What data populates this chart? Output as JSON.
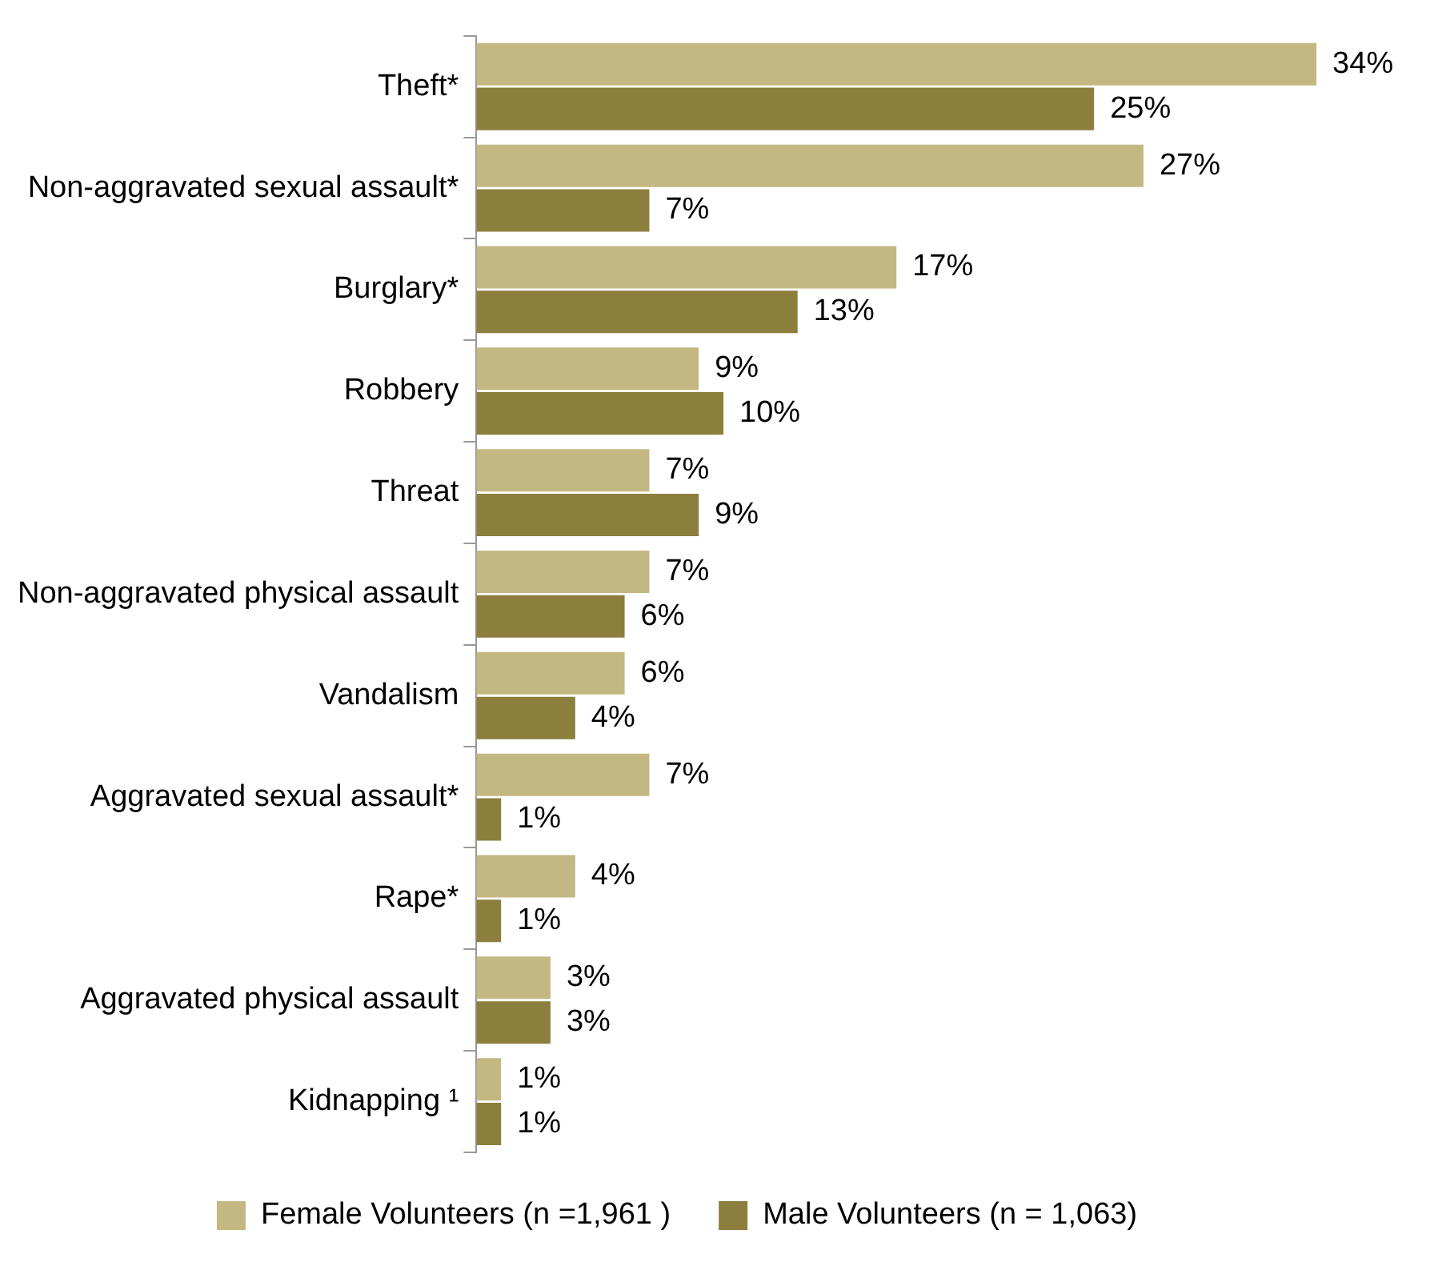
{
  "chart_data": {
    "type": "bar",
    "orientation": "horizontal",
    "legend": "bottom",
    "tick_labels": "y",
    "categories": [
      "Theft*",
      "Non-aggravated sexual assault*",
      "Burglary*",
      "Robbery",
      "Threat",
      "Non-aggravated physical assault",
      "Vandalism",
      "Aggravated sexual assault*",
      "Rape*",
      "Aggravated physical assault",
      "Kidnapping ¹"
    ],
    "series": [
      {
        "name": "Female Volunteers (n =1,961 )",
        "color": "#c4b882",
        "values": [
          34,
          27,
          17,
          9,
          7,
          7,
          6,
          7,
          4,
          3,
          1
        ],
        "value_labels": [
          "34%",
          "27%",
          "17%",
          "9%",
          "7%",
          "7%",
          "6%",
          "7%",
          "4%",
          "3%",
          "1%"
        ]
      },
      {
        "name": "Male Volunteers (n = 1,063)",
        "color": "#8c7e3c",
        "values": [
          25,
          7,
          13,
          10,
          9,
          6,
          4,
          1,
          1,
          3,
          1
        ],
        "value_labels": [
          "25%",
          "7%",
          "13%",
          "10%",
          "9%",
          "6%",
          "4%",
          "1%",
          "1%",
          "3%",
          "1%"
        ]
      }
    ]
  }
}
